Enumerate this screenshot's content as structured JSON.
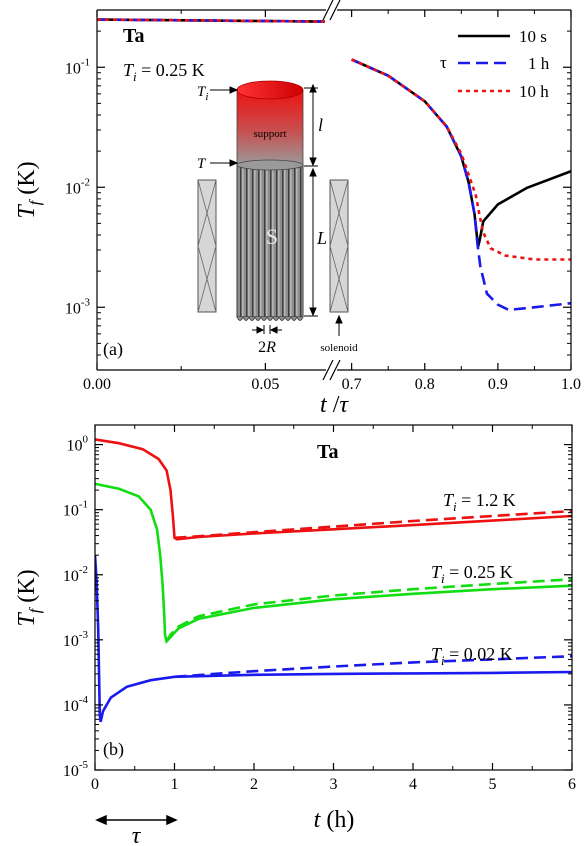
{
  "chart_data": [
    {
      "panel": "(a)",
      "type": "line",
      "material": "Ta",
      "ti_label": {
        "symbol": "T",
        "sub": "i",
        "rest": " = 0.25 K"
      },
      "xlabel": {
        "main": "t",
        "rest": " /",
        "tau": "τ"
      },
      "ylabel": {
        "main": "T",
        "sub": "f",
        "unit": " (K)"
      },
      "yscale": "log",
      "ylim": [
        0.0003,
        0.3
      ],
      "x_break": true,
      "x_segments": [
        {
          "range": [
            0,
            0.068
          ]
        },
        {
          "range": [
            0.68,
            1.0
          ]
        }
      ],
      "xticks": [
        {
          "v": 0,
          "label": "0.00"
        },
        {
          "v": 0.05,
          "label": "0.05"
        },
        {
          "v": 0.7,
          "label": "0.7"
        },
        {
          "v": 0.8,
          "label": "0.8"
        },
        {
          "v": 0.9,
          "label": "0.9"
        },
        {
          "v": 1.0,
          "label": "1.0"
        }
      ],
      "yticks": [
        {
          "v": 0.001,
          "m": "10",
          "e": "-3"
        },
        {
          "v": 0.01,
          "m": "10",
          "e": "-2"
        },
        {
          "v": 0.1,
          "m": "10",
          "e": "-1"
        }
      ],
      "legend_position": "top-right",
      "legend_tau": "τ",
      "series": [
        {
          "name": "10 s",
          "color": "#000000",
          "dash": "solid",
          "points": [
            [
              0,
              0.25
            ],
            [
              0.068,
              0.24
            ],
            [
              0.7,
              0.116
            ],
            [
              0.75,
              0.085
            ],
            [
              0.8,
              0.052
            ],
            [
              0.83,
              0.032
            ],
            [
              0.85,
              0.018
            ],
            [
              0.86,
              0.011
            ],
            [
              0.868,
              0.006
            ],
            [
              0.873,
              0.0032
            ],
            [
              0.875,
              0.0036
            ],
            [
              0.88,
              0.0052
            ],
            [
              0.9,
              0.0072
            ],
            [
              0.94,
              0.0099
            ],
            [
              1.0,
              0.0136
            ]
          ]
        },
        {
          "name": "1 h",
          "color": "#1a1aee",
          "dash": "dashed",
          "points": [
            [
              0,
              0.25
            ],
            [
              0.068,
              0.24
            ],
            [
              0.7,
              0.116
            ],
            [
              0.75,
              0.085
            ],
            [
              0.8,
              0.052
            ],
            [
              0.83,
              0.032
            ],
            [
              0.85,
              0.018
            ],
            [
              0.86,
              0.011
            ],
            [
              0.868,
              0.006
            ],
            [
              0.872,
              0.0034
            ],
            [
              0.876,
              0.0022
            ],
            [
              0.885,
              0.0013
            ],
            [
              0.9,
              0.00105
            ],
            [
              0.915,
              0.00095
            ],
            [
              0.95,
              0.001
            ],
            [
              1.0,
              0.00108
            ]
          ]
        },
        {
          "name": "10 h",
          "color": "#ee1111",
          "dash": "dotted",
          "points": [
            [
              0,
              0.25
            ],
            [
              0.068,
              0.24
            ],
            [
              0.7,
              0.116
            ],
            [
              0.75,
              0.085
            ],
            [
              0.8,
              0.052
            ],
            [
              0.83,
              0.032
            ],
            [
              0.85,
              0.019
            ],
            [
              0.86,
              0.0128
            ],
            [
              0.87,
              0.0085
            ],
            [
              0.875,
              0.0058
            ],
            [
              0.88,
              0.0042
            ],
            [
              0.89,
              0.0031
            ],
            [
              0.91,
              0.0027
            ],
            [
              0.95,
              0.0025
            ],
            [
              1.0,
              0.0025
            ]
          ]
        }
      ],
      "inset": {
        "support_label": "support",
        "sample_label": "S",
        "solenoid_label": "solenoid",
        "l_label": "l",
        "L_label": "L",
        "Ti_symbol": "T",
        "Ti_sub": "i",
        "T_label": "T",
        "twoR": {
          "num": "2",
          "R": "R"
        }
      }
    },
    {
      "panel": "(b)",
      "type": "line",
      "material": "Ta",
      "xlabel": {
        "main": "t",
        "rest": " (h)"
      },
      "ylabel": {
        "main": "T",
        "sub": "f",
        "unit": " (K)"
      },
      "yscale": "log",
      "xlim": [
        0,
        6
      ],
      "ylim": [
        1e-05,
        2
      ],
      "xticks": [
        "0",
        "1",
        "2",
        "3",
        "4",
        "5",
        "6"
      ],
      "yticks": [
        {
          "v": 1e-05,
          "m": "10",
          "e": "-5"
        },
        {
          "v": 0.0001,
          "m": "10",
          "e": "-4"
        },
        {
          "v": 0.001,
          "m": "10",
          "e": "-3"
        },
        {
          "v": 0.01,
          "m": "10",
          "e": "-2"
        },
        {
          "v": 0.1,
          "m": "10",
          "e": "-1"
        },
        {
          "v": 1,
          "m": "10",
          "e": "0"
        }
      ],
      "tau_label": "τ",
      "series": [
        {
          "label": {
            "symbol": "T",
            "sub": "i",
            "rest": " = 1.2 K"
          },
          "color": "#ee1111",
          "solid": [
            [
              0,
              1.2
            ],
            [
              0.3,
              1.05
            ],
            [
              0.6,
              0.85
            ],
            [
              0.8,
              0.6
            ],
            [
              0.9,
              0.4
            ],
            [
              0.95,
              0.2
            ],
            [
              0.98,
              0.08
            ],
            [
              1.0,
              0.037
            ],
            [
              1.03,
              0.035
            ],
            [
              1.3,
              0.038
            ],
            [
              2,
              0.043
            ],
            [
              3,
              0.05
            ],
            [
              4,
              0.058
            ],
            [
              5,
              0.068
            ],
            [
              6,
              0.08
            ]
          ],
          "dashed": [
            [
              1.0,
              0.037
            ],
            [
              1.3,
              0.039
            ],
            [
              2,
              0.045
            ],
            [
              3,
              0.055
            ],
            [
              4,
              0.067
            ],
            [
              5,
              0.08
            ],
            [
              6,
              0.095
            ]
          ]
        },
        {
          "label": {
            "symbol": "T",
            "sub": "i",
            "rest": " = 0.25 K"
          },
          "color": "#11dd11",
          "solid": [
            [
              0,
              0.25
            ],
            [
              0.3,
              0.21
            ],
            [
              0.55,
              0.16
            ],
            [
              0.7,
              0.1
            ],
            [
              0.78,
              0.05
            ],
            [
              0.82,
              0.02
            ],
            [
              0.85,
              0.007
            ],
            [
              0.87,
              0.0025
            ],
            [
              0.88,
              0.0012
            ],
            [
              0.9,
              0.00095
            ],
            [
              0.95,
              0.0011
            ],
            [
              1.05,
              0.0015
            ],
            [
              1.3,
              0.0021
            ],
            [
              2,
              0.0031
            ],
            [
              3,
              0.0042
            ],
            [
              4,
              0.0051
            ],
            [
              5,
              0.006
            ],
            [
              6,
              0.0068
            ]
          ],
          "dashed": [
            [
              0.9,
              0.00095
            ],
            [
              0.95,
              0.0012
            ],
            [
              1.05,
              0.0016
            ],
            [
              1.3,
              0.0023
            ],
            [
              2,
              0.0035
            ],
            [
              3,
              0.0048
            ],
            [
              4,
              0.006
            ],
            [
              5,
              0.0072
            ],
            [
              6,
              0.0085
            ]
          ]
        },
        {
          "label": {
            "symbol": "T",
            "sub": "i",
            "rest": " = 0.02 K"
          },
          "color": "#1a1aee",
          "solid": [
            [
              0,
              0.02
            ],
            [
              0.02,
              0.008
            ],
            [
              0.04,
              0.0015
            ],
            [
              0.06,
              7e-05
            ],
            [
              0.07,
              5.5e-05
            ],
            [
              0.1,
              8e-05
            ],
            [
              0.2,
              0.00013
            ],
            [
              0.4,
              0.00019
            ],
            [
              0.7,
              0.00024
            ],
            [
              1.0,
              0.00027
            ],
            [
              1.5,
              0.00028
            ],
            [
              2,
              0.00029
            ],
            [
              3,
              0.0003
            ],
            [
              4,
              0.000305
            ],
            [
              5,
              0.00031
            ],
            [
              6,
              0.00032
            ]
          ],
          "dashed": [
            [
              1.0,
              0.00027
            ],
            [
              1.5,
              0.0003
            ],
            [
              2,
              0.00033
            ],
            [
              3,
              0.00039
            ],
            [
              4,
              0.00045
            ],
            [
              5,
              0.0005
            ],
            [
              6,
              0.00056
            ]
          ]
        }
      ]
    }
  ]
}
